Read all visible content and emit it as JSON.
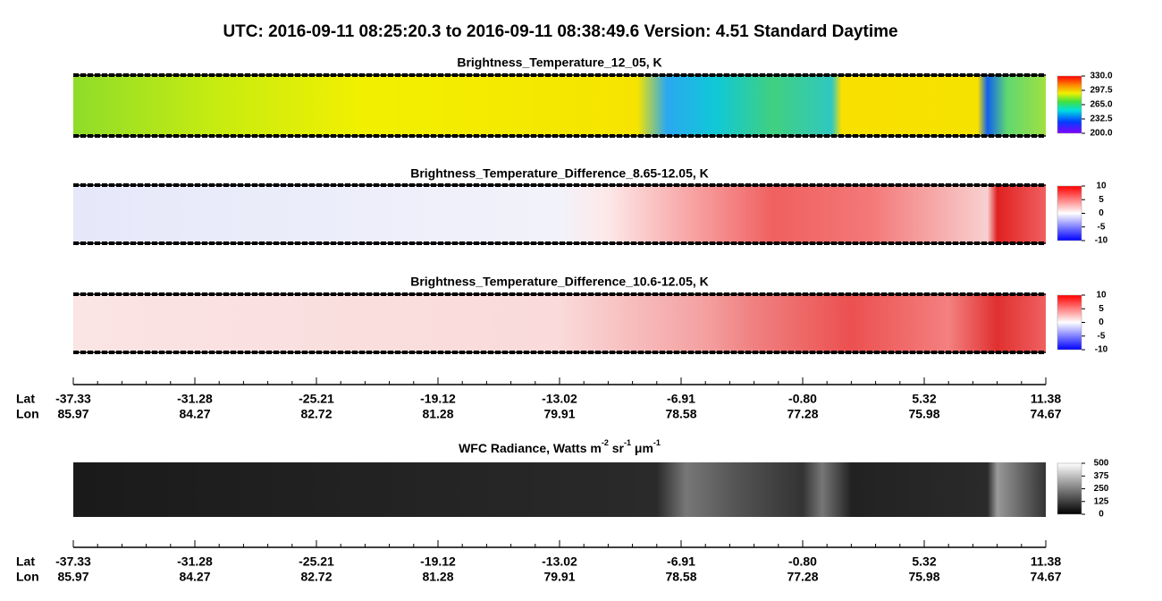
{
  "header": {
    "title": "UTC:  2016-09-11   08:25:20.3  to  2016-09-11   08:38:49.6    Version: 4.51  Standard Daytime"
  },
  "panels": [
    {
      "title": "Brightness_Temperature_12_05, K",
      "colorbar_ticks": [
        {
          "value": 330,
          "label": "330.0"
        },
        {
          "value": 297.5,
          "label": "297.5"
        },
        {
          "value": 265,
          "label": "265.0"
        },
        {
          "value": 232.5,
          "label": "232.5"
        },
        {
          "value": 200,
          "label": "200.0"
        }
      ]
    },
    {
      "title": "Brightness_Temperature_Difference_8.65-12.05, K",
      "colorbar_ticks": [
        10,
        5,
        0,
        -5,
        -10
      ]
    },
    {
      "title": "Brightness_Temperature_Difference_10.6-12.05, K",
      "colorbar_ticks": [
        10,
        5,
        0,
        -5,
        -10
      ]
    },
    {
      "title_parts": [
        "WFC Radiance, Watts m",
        "-2",
        " sr",
        "-1",
        " μm",
        "-1"
      ],
      "colorbar_ticks": [
        500,
        375,
        250,
        125,
        0
      ]
    }
  ],
  "axes": [
    {
      "lat_label": "Lat",
      "lon_label": "Lon",
      "lat": [
        "-37.33",
        "-31.28",
        "-25.21",
        "-19.12",
        "-13.02",
        "-6.91",
        "-0.80",
        "5.32",
        "11.38"
      ],
      "lon": [
        "85.97",
        "84.27",
        "82.72",
        "81.28",
        "79.91",
        "78.58",
        "77.28",
        "75.98",
        "74.67"
      ]
    },
    {
      "lat_label": "Lat",
      "lon_label": "Lon",
      "lat": [
        "-37.33",
        "-31.28",
        "-25.21",
        "-19.12",
        "-13.02",
        "-6.91",
        "-0.80",
        "5.32",
        "11.38"
      ],
      "lon": [
        "85.97",
        "84.27",
        "82.72",
        "81.28",
        "79.91",
        "78.58",
        "77.28",
        "75.98",
        "74.67"
      ]
    }
  ]
}
